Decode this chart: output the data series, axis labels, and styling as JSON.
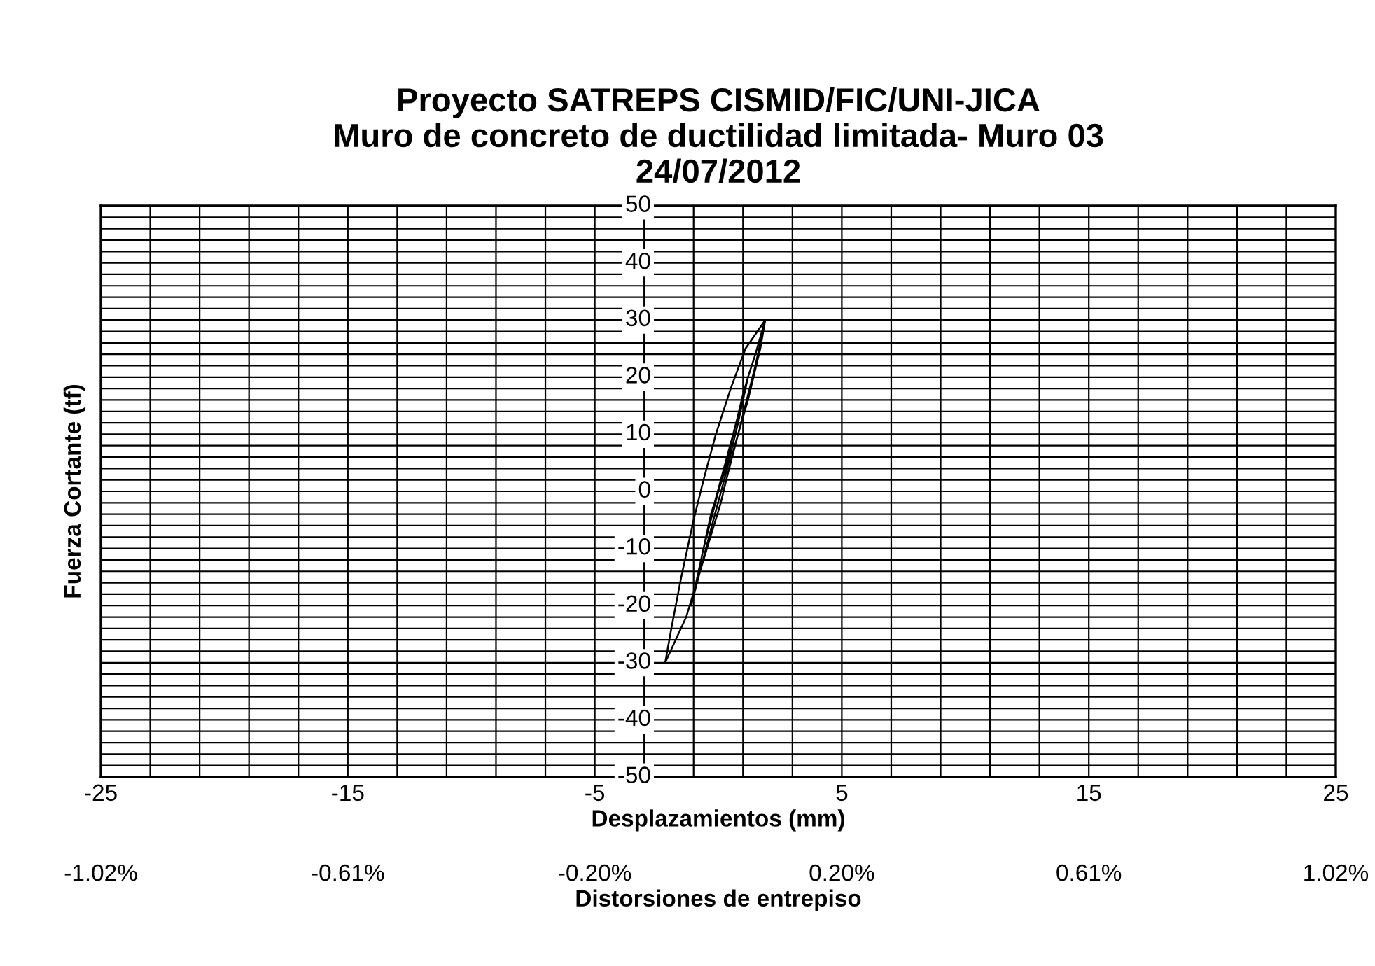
{
  "chart_data": {
    "type": "line",
    "title": "Proyecto SATREPS CISMID/FIC/UNI-JICA\nMuro de concreto de ductilidad limitada- Muro 03\n24/07/2012",
    "xlabel": "Desplazamientos (mm)",
    "ylabel": "Fuerza Cortante (tf)",
    "x2label": "Distorsiones de entrepiso",
    "series": [
      {
        "color": "#000000",
        "x": [
          0,
          0.3,
          0.6,
          0.3,
          0,
          -0.3,
          -0.6,
          -0.3,
          0,
          0.5,
          1.0,
          1.2,
          0.8,
          0.3,
          -0.2,
          -0.8,
          -1.1,
          -0.9,
          -0.4,
          0.1,
          0.6,
          1.2,
          1.5,
          1.9,
          1.7,
          1.2,
          0.6,
          0.1,
          -0.6,
          -1.3,
          -2.15,
          -1.9,
          -1.5,
          -1.0,
          -0.6,
          -0.1,
          0.5,
          1.1,
          1.9,
          1.5,
          0.8,
          0.2
        ],
        "values": [
          0,
          5,
          10,
          4,
          0,
          -5,
          -10,
          -4,
          0,
          8,
          17,
          20,
          12,
          3,
          -5,
          -15,
          -20,
          -16,
          -6,
          2,
          10,
          20,
          24,
          30,
          25,
          16,
          7,
          -2,
          -12,
          -22,
          -30,
          -24,
          -15,
          -5,
          2,
          10,
          18,
          25,
          30,
          22,
          10,
          0
        ]
      }
    ],
    "xlim": [
      -25,
      25
    ],
    "ylim": [
      -50,
      50
    ],
    "xticks": [
      -25,
      {
        "value": -23,
        "label": null
      },
      {
        "value": -21,
        "label": null
      },
      {
        "value": -19,
        "label": null
      },
      {
        "value": -17,
        "label": null
      },
      -15,
      {
        "value": -13,
        "label": null
      },
      {
        "value": -11,
        "label": null
      },
      {
        "value": -9,
        "label": null
      },
      {
        "value": -7,
        "label": null
      },
      -5,
      {
        "value": -3,
        "label": null
      },
      {
        "value": -1,
        "label": null
      },
      {
        "value": 1,
        "label": null
      },
      {
        "value": 3,
        "label": null
      },
      5,
      {
        "value": 7,
        "label": null
      },
      {
        "value": 9,
        "label": null
      },
      {
        "value": 11,
        "label": null
      },
      {
        "value": 13,
        "label": null
      },
      15,
      {
        "value": 17,
        "label": null
      },
      {
        "value": 19,
        "label": null
      },
      {
        "value": 21,
        "label": null
      },
      {
        "value": 23,
        "label": null
      },
      25
    ],
    "yticks": [
      -50,
      {
        "value": -48,
        "label": null
      },
      {
        "value": -46,
        "label": null
      },
      {
        "value": -44,
        "label": null
      },
      {
        "value": -42,
        "label": null
      },
      -40,
      {
        "value": -38,
        "label": null
      },
      {
        "value": -36,
        "label": null
      },
      {
        "value": -34,
        "label": null
      },
      {
        "value": -32,
        "label": null
      },
      -30,
      {
        "value": -28,
        "label": null
      },
      {
        "value": -26,
        "label": null
      },
      {
        "value": -24,
        "label": null
      },
      {
        "value": -22,
        "label": null
      },
      -20,
      {
        "value": -18,
        "label": null
      },
      {
        "value": -16,
        "label": null
      },
      {
        "value": -14,
        "label": null
      },
      {
        "value": -12,
        "label": null
      },
      -10,
      {
        "value": -8,
        "label": null
      },
      {
        "value": -6,
        "label": null
      },
      {
        "value": -4,
        "label": null
      },
      {
        "value": -2,
        "label": null
      },
      0,
      {
        "value": 2,
        "label": null
      },
      {
        "value": 4,
        "label": null
      },
      {
        "value": 6,
        "label": null
      },
      {
        "value": 8,
        "label": null
      },
      10,
      {
        "value": 12,
        "label": null
      },
      {
        "value": 14,
        "label": null
      },
      {
        "value": 16,
        "label": null
      },
      {
        "value": 18,
        "label": null
      },
      20,
      {
        "value": 22,
        "label": null
      },
      {
        "value": 24,
        "label": null
      },
      {
        "value": 26,
        "label": null
      },
      {
        "value": 28,
        "label": null
      },
      30,
      {
        "value": 32,
        "label": null
      },
      {
        "value": 34,
        "label": null
      },
      {
        "value": 36,
        "label": null
      },
      {
        "value": 38,
        "label": null
      },
      40,
      {
        "value": 42,
        "label": null
      },
      {
        "value": 44,
        "label": null
      },
      {
        "value": 46,
        "label": null
      },
      {
        "value": 48,
        "label": null
      },
      50
    ],
    "x2lim": [
      -1.02,
      1.02
    ],
    "x2ticks": [
      {
        "value": -1.02,
        "label": "-1.02%"
      },
      {
        "value": -0.612,
        "label": "-0.61%"
      },
      {
        "value": -0.204,
        "label": "-0.20%"
      },
      {
        "value": 0.204,
        "label": "0.20%"
      },
      {
        "value": 0.612,
        "label": "0.61%"
      },
      {
        "value": 1.02,
        "label": "1.02%"
      }
    ],
    "grid": true,
    "marker": "none",
    "line_style": "solid"
  }
}
